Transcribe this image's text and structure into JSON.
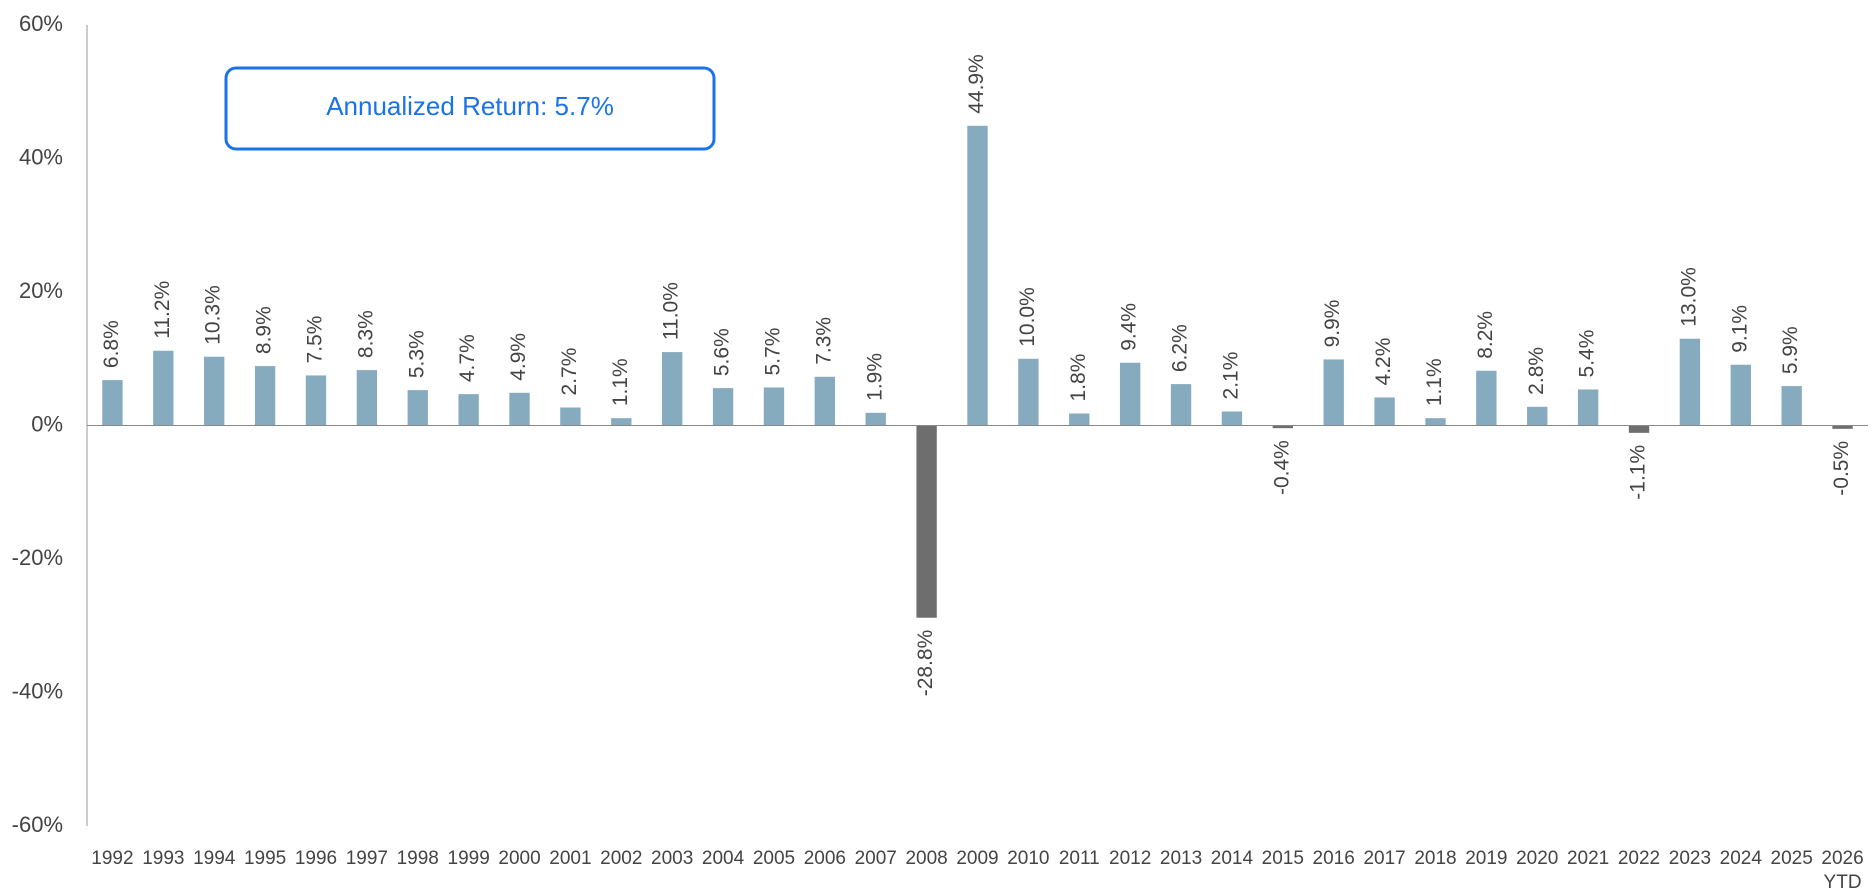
{
  "chart_data": {
    "type": "bar",
    "annotation": "Annualized Return: 5.7%",
    "categories": [
      "1992",
      "1993",
      "1994",
      "1995",
      "1996",
      "1997",
      "1998",
      "1999",
      "2000",
      "2001",
      "2002",
      "2003",
      "2004",
      "2005",
      "2006",
      "2007",
      "2008",
      "2009",
      "2010",
      "2011",
      "2012",
      "2013",
      "2014",
      "2015",
      "2016",
      "2017",
      "2018",
      "2019",
      "2020",
      "2021",
      "2022",
      "2023",
      "2024",
      "2025",
      "2026\nYTD"
    ],
    "values": [
      6.8,
      11.2,
      10.3,
      8.9,
      7.5,
      8.3,
      5.3,
      4.7,
      4.9,
      2.7,
      1.1,
      11.0,
      5.6,
      5.7,
      7.3,
      1.9,
      -28.8,
      44.9,
      10.0,
      1.8,
      9.4,
      6.2,
      2.1,
      -0.4,
      9.9,
      4.2,
      1.1,
      8.2,
      2.8,
      5.4,
      -1.1,
      13.0,
      9.1,
      5.9,
      -0.5
    ],
    "value_labels": [
      "6.8%",
      "11.2%",
      "10.3%",
      "8.9%",
      "7.5%",
      "8.3%",
      "5.3%",
      "4.7%",
      "4.9%",
      "2.7%",
      "1.1%",
      "11.0%",
      "5.6%",
      "5.7%",
      "7.3%",
      "1.9%",
      "-28.8%",
      "44.9%",
      "10.0%",
      "1.8%",
      "9.4%",
      "6.2%",
      "2.1%",
      "-0.4%",
      "9.9%",
      "4.2%",
      "1.1%",
      "8.2%",
      "2.8%",
      "5.4%",
      "-1.1%",
      "13.0%",
      "9.1%",
      "5.9%",
      "-0.5%"
    ],
    "color": "#86abbf",
    "negative_color": "#6e6e6e",
    "ylim": [
      -60,
      60
    ],
    "yticks": [
      {
        "value": -60,
        "label": "-60%"
      },
      {
        "value": -40,
        "label": "-40%"
      },
      {
        "value": -20,
        "label": "-20%"
      },
      {
        "value": 0,
        "label": "0%"
      },
      {
        "value": 20,
        "label": "20%"
      },
      {
        "value": 40,
        "label": "40%"
      },
      {
        "value": 60,
        "label": "60%"
      }
    ],
    "grid": false
  }
}
